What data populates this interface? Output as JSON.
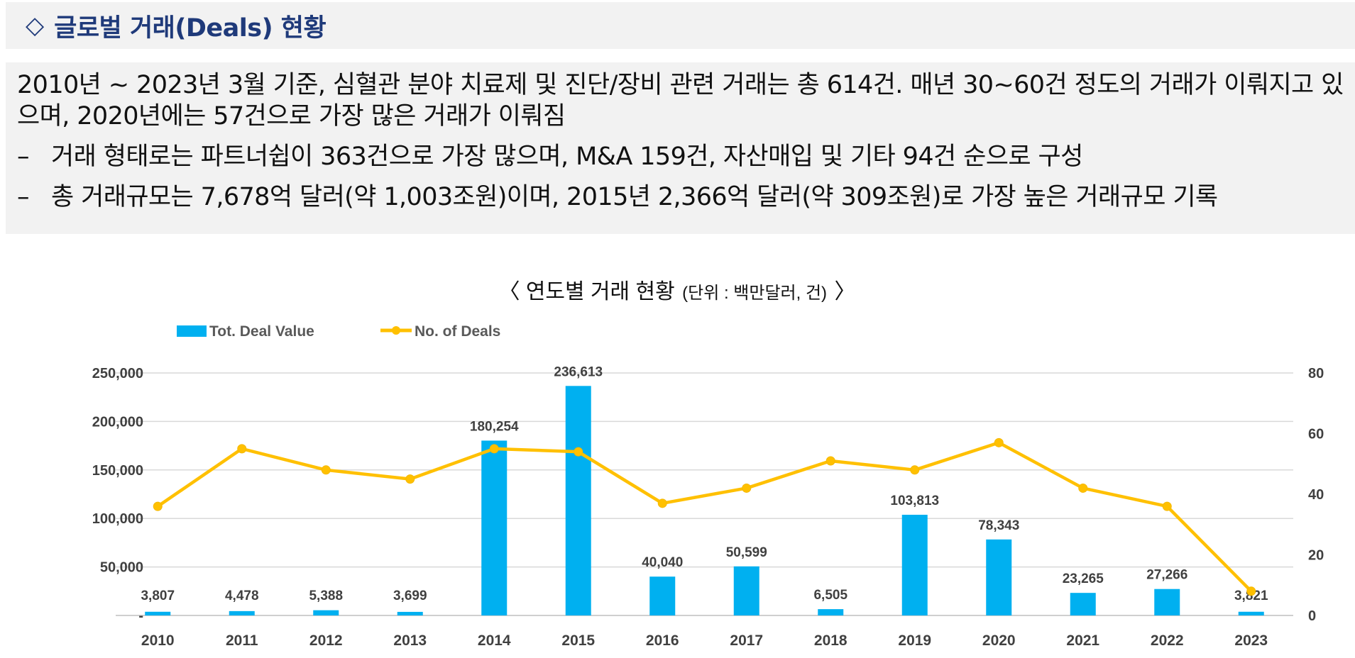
{
  "header": {
    "diamond": "◇",
    "title": "글로벌 거래(Deals) 현황"
  },
  "summary": {
    "intro": "2010년 ~ 2023년 3월 기준, 심혈관 분야 치료제 및 진단/장비 관련 거래는 총 614건. 매년 30~60건 정도의 거래가 이뤄지고 있으며, 2020년에는 57건으로 가장 많은 거래가 이뤄짐",
    "bullets": [
      "거래 형태로는 파트너쉽이 363건으로 가장 많으며, M&A 159건, 자산매입 및 기타 94건 순으로 구성",
      "총 거래규모는 7,678억 달러(약 1,003조원)이며, 2015년 2,366억 달러(약 309조원)로 가장 높은 거래규모 기록"
    ],
    "bullet_marker": "–"
  },
  "chart_data": {
    "type": "bar",
    "title": "〈 연도별 거래 현황 (단위 : 백만달러, 건) 〉",
    "title_main": "〈 연도별 거래 현황",
    "title_unit": "(단위 : 백만달러, 건)",
    "title_close": "〉",
    "categories": [
      "2010",
      "2011",
      "2012",
      "2013",
      "2014",
      "2015",
      "2016",
      "2017",
      "2018",
      "2019",
      "2020",
      "2021",
      "2022",
      "2023"
    ],
    "series": [
      {
        "name": "Tot. Deal Value",
        "type": "bar",
        "axis": "left",
        "color": "#00b0f0",
        "values": [
          3807,
          4478,
          5388,
          3699,
          180254,
          236613,
          40040,
          50599,
          6505,
          103813,
          78343,
          23265,
          27266,
          3821
        ],
        "labels": [
          "3,807",
          "4,478",
          "5,388",
          "3,699",
          "180,254",
          "236,613",
          "40,040",
          "50,599",
          "6,505",
          "103,813",
          "78,343",
          "23,265",
          "27,266",
          "3,821"
        ]
      },
      {
        "name": "No. of Deals",
        "type": "line",
        "axis": "right",
        "color": "#ffc000",
        "values": [
          36,
          55,
          48,
          45,
          55,
          54,
          37,
          42,
          51,
          48,
          57,
          42,
          36,
          8
        ]
      }
    ],
    "y_left": {
      "range": [
        0,
        250000
      ],
      "ticks": [
        0,
        50000,
        100000,
        150000,
        200000,
        250000
      ],
      "tick_labels": [
        "-",
        "50,000",
        "100,000",
        "150,000",
        "200,000",
        "250,000"
      ]
    },
    "y_right": {
      "range": [
        0,
        80
      ],
      "ticks": [
        0,
        20,
        40,
        60,
        80
      ],
      "tick_labels": [
        "0",
        "20",
        "40",
        "60",
        "80"
      ]
    },
    "grid": true,
    "legend_position": "top-left"
  }
}
